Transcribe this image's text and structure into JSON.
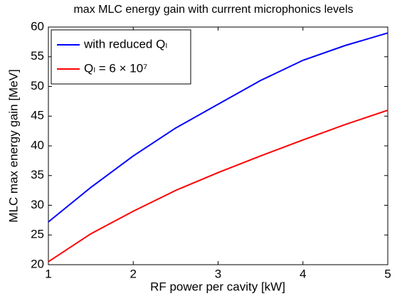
{
  "chart_data": {
    "type": "line",
    "title": "max MLC energy gain with currrent microphonics levels",
    "x_label": "RF power per cavity [kW]",
    "y_label": "MLC max energy gain [MeV]",
    "x": [
      1,
      1.5,
      2,
      2.5,
      3,
      3.5,
      4,
      4.5,
      5
    ],
    "series": [
      {
        "name": "with reduced Qₗ",
        "color": "#0000ff",
        "values": [
          27.2,
          33.0,
          38.3,
          43.0,
          47.0,
          51.0,
          54.4,
          56.9,
          59.0
        ]
      },
      {
        "name": "Qₗ = 6 × 10⁷",
        "color": "#ff0000",
        "values": [
          20.5,
          25.2,
          29.0,
          32.5,
          35.5,
          38.3,
          41.0,
          43.6,
          46.0
        ]
      }
    ],
    "xlim": [
      1,
      5
    ],
    "xticks": [
      1,
      2,
      3,
      4,
      5
    ],
    "ylim": [
      20,
      60
    ],
    "yticks": [
      20,
      25,
      30,
      35,
      40,
      45,
      50,
      55,
      60
    ],
    "grid": false,
    "legend": "upper-left"
  }
}
